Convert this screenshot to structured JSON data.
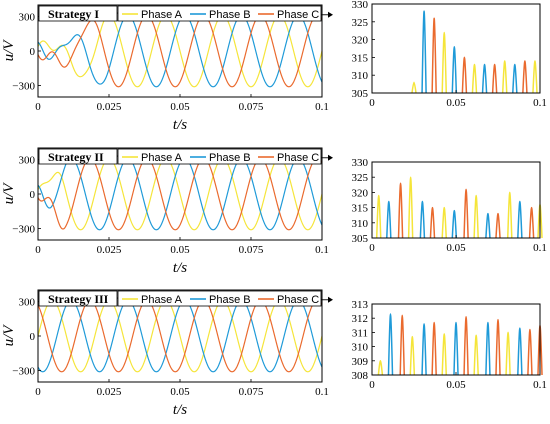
{
  "colors": {
    "phase_a": "#f5e53a",
    "phase_b": "#1f9ad8",
    "phase_c": "#ea6a2e"
  },
  "chart_data": [
    {
      "type": "line",
      "title": "Strategy  I",
      "xlabel": "t/s",
      "ylabel": "u/V",
      "xlim": [
        0,
        0.1
      ],
      "ylim": [
        -400,
        400
      ],
      "xticks": [
        "0",
        "0.025",
        "0.05",
        "0.075",
        "0.1"
      ],
      "yticks": [
        "300",
        "0",
        "−300"
      ],
      "legend": "top-right",
      "series": [
        {
          "name": "Phase A",
          "amplitude": 311,
          "frequency_hz": 50,
          "phase_deg": 0
        },
        {
          "name": "Phase B",
          "amplitude": 311,
          "frequency_hz": 50,
          "phase_deg": -120
        },
        {
          "name": "Phase C",
          "amplitude": 311,
          "frequency_hz": 50,
          "phase_deg": 120
        }
      ],
      "transient_until_s": 0.025
    },
    {
      "type": "line",
      "title": "Strategy  II",
      "xlabel": "t/s",
      "ylabel": "u/V",
      "xlim": [
        0,
        0.1
      ],
      "ylim": [
        -400,
        400
      ],
      "xticks": [
        "0",
        "0.025",
        "0.05",
        "0.075",
        "0.1"
      ],
      "yticks": [
        "300",
        "0",
        "−300"
      ],
      "legend": "top-right",
      "series": [
        {
          "name": "Phase A",
          "amplitude": 311,
          "frequency_hz": 50,
          "phase_deg": 0
        },
        {
          "name": "Phase B",
          "amplitude": 311,
          "frequency_hz": 50,
          "phase_deg": -120
        },
        {
          "name": "Phase C",
          "amplitude": 311,
          "frequency_hz": 50,
          "phase_deg": 120
        }
      ],
      "transient_until_s": 0.01
    },
    {
      "type": "line",
      "title": "Strategy  III",
      "xlabel": "t/s",
      "ylabel": "u/V",
      "xlim": [
        0,
        0.1
      ],
      "ylim": [
        -400,
        400
      ],
      "xticks": [
        "0",
        "0.025",
        "0.05",
        "0.075",
        "0.1"
      ],
      "yticks": [
        "300",
        "0",
        "−300"
      ],
      "legend": "top-right",
      "series": [
        {
          "name": "Phase A",
          "amplitude": 311,
          "frequency_hz": 50,
          "phase_deg": 0
        },
        {
          "name": "Phase B",
          "amplitude": 311,
          "frequency_hz": 50,
          "phase_deg": -120
        },
        {
          "name": "Phase C",
          "amplitude": 311,
          "frequency_hz": 50,
          "phase_deg": 120
        }
      ],
      "transient_until_s": 0
    },
    {
      "type": "line",
      "title": "",
      "xlim": [
        0,
        0.1
      ],
      "ylim": [
        305,
        330
      ],
      "xticks": [
        "0",
        "0.05",
        "0.1"
      ],
      "yticks": [
        "330",
        "325",
        "320",
        "315",
        "310",
        "305"
      ],
      "peaks": [
        {
          "t": 0.025,
          "v": 308,
          "phase": "A"
        },
        {
          "t": 0.031,
          "v": 328,
          "phase": "B"
        },
        {
          "t": 0.037,
          "v": 326,
          "phase": "C"
        },
        {
          "t": 0.043,
          "v": 322,
          "phase": "A"
        },
        {
          "t": 0.049,
          "v": 318,
          "phase": "B"
        },
        {
          "t": 0.055,
          "v": 315,
          "phase": "C"
        },
        {
          "t": 0.061,
          "v": 313,
          "phase": "A"
        },
        {
          "t": 0.067,
          "v": 313,
          "phase": "B"
        },
        {
          "t": 0.073,
          "v": 313,
          "phase": "C"
        },
        {
          "t": 0.079,
          "v": 314,
          "phase": "A"
        },
        {
          "t": 0.085,
          "v": 313,
          "phase": "B"
        },
        {
          "t": 0.091,
          "v": 314,
          "phase": "C"
        },
        {
          "t": 0.097,
          "v": 314,
          "phase": "A"
        }
      ]
    },
    {
      "type": "line",
      "title": "",
      "xlim": [
        0,
        0.1
      ],
      "ylim": [
        305,
        330
      ],
      "xticks": [
        "0",
        "0.05",
        "0.1"
      ],
      "yticks": [
        "330",
        "325",
        "320",
        "315",
        "310",
        "305"
      ],
      "peaks": [
        {
          "t": 0.004,
          "v": 319,
          "phase": "A"
        },
        {
          "t": 0.01,
          "v": 317,
          "phase": "B"
        },
        {
          "t": 0.017,
          "v": 323,
          "phase": "C"
        },
        {
          "t": 0.023,
          "v": 325,
          "phase": "A"
        },
        {
          "t": 0.03,
          "v": 317,
          "phase": "B"
        },
        {
          "t": 0.036,
          "v": 315,
          "phase": "C"
        },
        {
          "t": 0.043,
          "v": 315,
          "phase": "A"
        },
        {
          "t": 0.049,
          "v": 314,
          "phase": "B"
        },
        {
          "t": 0.056,
          "v": 321,
          "phase": "C"
        },
        {
          "t": 0.062,
          "v": 319,
          "phase": "A"
        },
        {
          "t": 0.069,
          "v": 313,
          "phase": "B"
        },
        {
          "t": 0.075,
          "v": 313,
          "phase": "C"
        },
        {
          "t": 0.082,
          "v": 320,
          "phase": "A"
        },
        {
          "t": 0.088,
          "v": 317,
          "phase": "B"
        },
        {
          "t": 0.095,
          "v": 315,
          "phase": "C"
        },
        {
          "t": 0.1,
          "v": 316,
          "phase": "A"
        }
      ]
    },
    {
      "type": "line",
      "title": "",
      "xlim": [
        0,
        0.1
      ],
      "ylim": [
        308,
        313
      ],
      "xticks": [
        "0",
        "0.05",
        "0.1"
      ],
      "yticks": [
        "313",
        "312",
        "311",
        "310",
        "309",
        "308"
      ],
      "peaks": [
        {
          "t": 0.005,
          "v": 309.0,
          "phase": "A"
        },
        {
          "t": 0.011,
          "v": 312.3,
          "phase": "B"
        },
        {
          "t": 0.018,
          "v": 312.2,
          "phase": "C"
        },
        {
          "t": 0.024,
          "v": 310.7,
          "phase": "A"
        },
        {
          "t": 0.031,
          "v": 311.6,
          "phase": "B"
        },
        {
          "t": 0.037,
          "v": 311.7,
          "phase": "C"
        },
        {
          "t": 0.043,
          "v": 310.9,
          "phase": "A"
        },
        {
          "t": 0.05,
          "v": 311.7,
          "phase": "B"
        },
        {
          "t": 0.056,
          "v": 312.1,
          "phase": "C"
        },
        {
          "t": 0.062,
          "v": 310.8,
          "phase": "A"
        },
        {
          "t": 0.069,
          "v": 311.7,
          "phase": "B"
        },
        {
          "t": 0.075,
          "v": 311.9,
          "phase": "C"
        },
        {
          "t": 0.081,
          "v": 311.0,
          "phase": "A"
        },
        {
          "t": 0.088,
          "v": 311.3,
          "phase": "B"
        },
        {
          "t": 0.094,
          "v": 311.2,
          "phase": "C"
        },
        {
          "t": 0.1,
          "v": 311.5,
          "phase": "C"
        }
      ]
    }
  ]
}
